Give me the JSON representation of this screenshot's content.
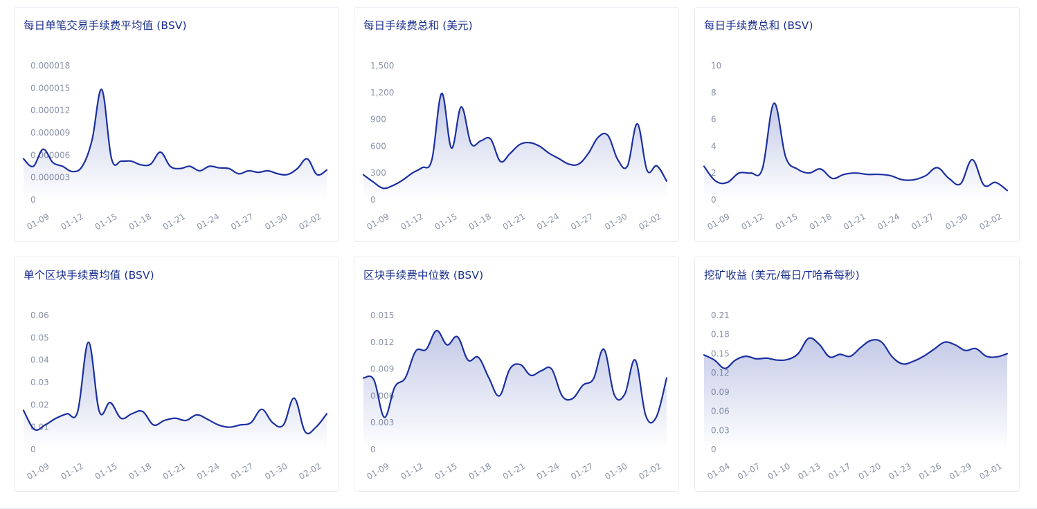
{
  "chart_data": [
    {
      "type": "area",
      "title": "每日单笔交易手续费平均值 (BSV)",
      "yticks": [
        "0",
        "0.000003",
        "0.000006",
        "0.000009",
        "0.000012",
        "0.000015",
        "0.000018"
      ],
      "ylim": [
        0,
        1.8e-05
      ],
      "xticks": [
        "01-09",
        "01-12",
        "01-15",
        "01-18",
        "01-21",
        "01-24",
        "01-27",
        "01-30",
        "02-02"
      ],
      "series": [
        {
          "values": [
            5.5e-06,
            4.5e-06,
            6.8e-06,
            5e-06,
            4.5e-06,
            3.8e-06,
            4.5e-06,
            8e-06,
            1.48e-05,
            5.5e-06,
            5.2e-06,
            5.2e-06,
            4.7e-06,
            4.8e-06,
            6.4e-06,
            4.5e-06,
            4.2e-06,
            4.5e-06,
            3.9e-06,
            4.5e-06,
            4.3e-06,
            4.2e-06,
            3.5e-06,
            3.9e-06,
            3.7e-06,
            3.9e-06,
            3.5e-06,
            3.4e-06,
            4.2e-06,
            5.5e-06,
            3.4e-06,
            4e-06
          ]
        }
      ]
    },
    {
      "type": "area",
      "title": "每日手续费总和 (美元)",
      "yticks": [
        "0",
        "300",
        "600",
        "900",
        "1,200",
        "1,500"
      ],
      "ylim": [
        0,
        1500
      ],
      "xticks": [
        "01-09",
        "01-12",
        "01-15",
        "01-18",
        "01-21",
        "01-24",
        "01-27",
        "01-30",
        "02-02"
      ],
      "series": [
        {
          "values": [
            280,
            200,
            130,
            160,
            220,
            300,
            360,
            450,
            1190,
            580,
            1040,
            630,
            660,
            680,
            430,
            520,
            620,
            640,
            600,
            520,
            460,
            400,
            400,
            520,
            700,
            720,
            450,
            380,
            850,
            330,
            380,
            210
          ]
        }
      ]
    },
    {
      "type": "area",
      "title": "每日手续费总和 (BSV)",
      "yticks": [
        "0",
        "2",
        "4",
        "6",
        "8",
        "10"
      ],
      "ylim": [
        0,
        10
      ],
      "xticks": [
        "01-09",
        "01-12",
        "01-15",
        "01-18",
        "01-21",
        "01-24",
        "01-27",
        "01-30",
        "02-02"
      ],
      "series": [
        {
          "values": [
            2.5,
            1.4,
            1.3,
            2.0,
            2.0,
            2.3,
            7.2,
            3.2,
            2.3,
            2.0,
            2.3,
            1.6,
            1.9,
            2.0,
            1.9,
            1.9,
            1.8,
            1.5,
            1.5,
            1.8,
            2.4,
            1.6,
            1.2,
            3.0,
            1.1,
            1.3,
            0.7
          ]
        }
      ]
    },
    {
      "type": "area",
      "title": "单个区块手续费均值 (BSV)",
      "yticks": [
        "0",
        "0.01",
        "0.02",
        "0.03",
        "0.04",
        "0.05",
        "0.06"
      ],
      "ylim": [
        0,
        0.06
      ],
      "xticks": [
        "01-09",
        "01-12",
        "01-15",
        "01-18",
        "01-21",
        "01-24",
        "01-27",
        "01-30",
        "02-02"
      ],
      "series": [
        {
          "values": [
            0.0175,
            0.009,
            0.011,
            0.014,
            0.016,
            0.017,
            0.048,
            0.017,
            0.021,
            0.014,
            0.016,
            0.017,
            0.011,
            0.013,
            0.014,
            0.013,
            0.0155,
            0.0135,
            0.011,
            0.01,
            0.011,
            0.012,
            0.018,
            0.012,
            0.011,
            0.023,
            0.008,
            0.01,
            0.016
          ]
        }
      ]
    },
    {
      "type": "area",
      "title": "区块手续费中位数 (BSV)",
      "yticks": [
        "0",
        "0.003",
        "0.006",
        "0.009",
        "0.012",
        "0.015"
      ],
      "ylim": [
        0,
        0.015
      ],
      "xticks": [
        "01-09",
        "01-12",
        "01-15",
        "01-18",
        "01-21",
        "01-24",
        "01-27",
        "01-30",
        "02-02"
      ],
      "series": [
        {
          "values": [
            0.008,
            0.0078,
            0.0036,
            0.007,
            0.008,
            0.011,
            0.0112,
            0.0133,
            0.0117,
            0.0126,
            0.01,
            0.0103,
            0.008,
            0.006,
            0.009,
            0.0095,
            0.0083,
            0.0088,
            0.009,
            0.006,
            0.0057,
            0.0072,
            0.0079,
            0.0112,
            0.0061,
            0.0062,
            0.01,
            0.0038,
            0.0036,
            0.008
          ]
        }
      ]
    },
    {
      "type": "area",
      "title": "挖矿收益 (美元/每日/T哈希每秒)",
      "yticks": [
        "0",
        "0.03",
        "0.06",
        "0.09",
        "0.12",
        "0.15",
        "0.18",
        "0.21"
      ],
      "ylim": [
        0,
        0.21
      ],
      "xticks": [
        "01-04",
        "01-07",
        "01-10",
        "01-13",
        "01-17",
        "01-20",
        "01-23",
        "01-26",
        "01-29",
        "02-01"
      ],
      "series": [
        {
          "values": [
            0.148,
            0.14,
            0.127,
            0.14,
            0.146,
            0.142,
            0.143,
            0.14,
            0.141,
            0.15,
            0.174,
            0.165,
            0.145,
            0.149,
            0.146,
            0.16,
            0.171,
            0.168,
            0.145,
            0.134,
            0.138,
            0.146,
            0.157,
            0.168,
            0.164,
            0.155,
            0.158,
            0.146,
            0.145,
            0.15
          ]
        }
      ]
    }
  ]
}
